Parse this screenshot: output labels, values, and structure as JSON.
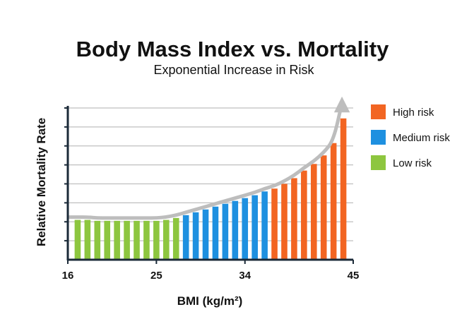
{
  "chart_data": {
    "type": "bar",
    "title": "Body Mass Index vs. Mortality",
    "subtitle": "Exponential Increase in Risk",
    "xlabel": "BMI (kg/m²)",
    "ylabel": "Relative Mortality Rate",
    "x_ticks": [
      16,
      25,
      34,
      45
    ],
    "xlim": [
      16,
      45
    ],
    "ylim": [
      0,
      8
    ],
    "grid": true,
    "legend_position": "right",
    "trend_arrow": true,
    "legend": [
      {
        "key": "high",
        "label": "High risk",
        "color": "#f26522"
      },
      {
        "key": "medium",
        "label": "Medium risk",
        "color": "#1e90e0"
      },
      {
        "key": "low",
        "label": "Low risk",
        "color": "#8dc63f"
      }
    ],
    "series": [
      {
        "name": "Low risk",
        "key": "low",
        "x": [
          17,
          18,
          19,
          20,
          21,
          22,
          23,
          24,
          25,
          26,
          27
        ],
        "values": [
          2.1,
          2.1,
          2.05,
          2.05,
          2.05,
          2.05,
          2.05,
          2.05,
          2.05,
          2.1,
          2.2
        ]
      },
      {
        "name": "Medium risk",
        "key": "medium",
        "x": [
          28,
          29,
          30,
          31,
          32,
          33,
          34,
          35,
          36
        ],
        "values": [
          2.35,
          2.5,
          2.65,
          2.8,
          2.95,
          3.1,
          3.25,
          3.4,
          3.6
        ]
      },
      {
        "name": "High risk",
        "key": "high",
        "x": [
          37,
          38,
          39,
          40,
          41,
          42,
          43,
          44
        ],
        "values": [
          3.75,
          4.0,
          4.3,
          4.7,
          5.05,
          5.5,
          6.15,
          7.45
        ]
      }
    ]
  }
}
